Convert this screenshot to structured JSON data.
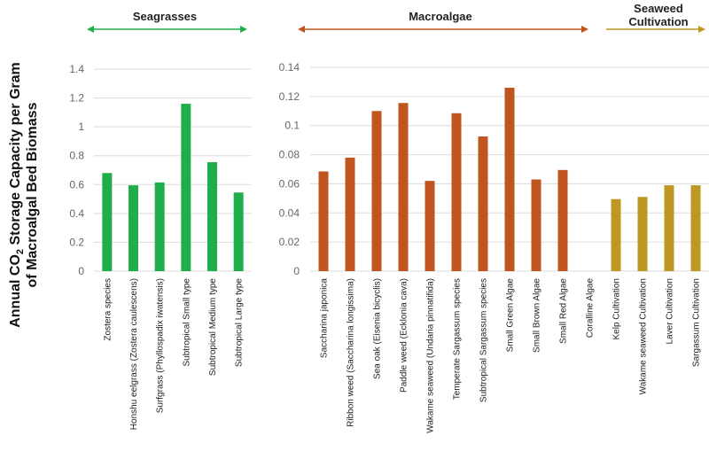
{
  "colors": {
    "seagrass": "#1fae4b",
    "macroalgae": "#c0551f",
    "cultivation": "#bd9822",
    "grid": "#dcdcdc"
  },
  "ylabel": {
    "line1_pre": "Annual CO",
    "line1_sub": "2",
    "line1_post": " Storage Capacity per Gram",
    "line2": "of Macroalgal Bed Biomass"
  },
  "groups": {
    "seagrasses": "Seagrasses",
    "macroalgae": "Macroalgae",
    "cultivation_line1": "Seaweed",
    "cultivation_line2": "Cultivation"
  },
  "chart_data": [
    {
      "type": "bar",
      "group": "Seagrasses",
      "ylim": [
        0,
        1.4
      ],
      "yticks": [
        "0",
        "0.2",
        "0.4",
        "0.6",
        "0.8",
        "1",
        "1.2",
        "1.4"
      ],
      "categories": [
        "Zostera species",
        "Honshu eelgrass (Zostera caulescens)",
        "Surfgrass (Phyllospadix iwatensis)",
        "Subtropical Small type",
        "Subtropical Medium type",
        "Subtropical Large type"
      ],
      "values": [
        0.68,
        0.595,
        0.615,
        1.16,
        0.755,
        0.545
      ]
    },
    {
      "type": "bar",
      "group": "Macroalgae / Seaweed Cultivation",
      "ylim": [
        0,
        0.14
      ],
      "yticks": [
        "0",
        "0.02",
        "0.04",
        "0.06",
        "0.08",
        "0.1",
        "0.12",
        "0.14"
      ],
      "categories": [
        "Saccharina japonica",
        "Ribbon weed (Saccharina longissima)",
        "Sea oak (Eisenia bicyclis)",
        "Paddle weed (Ecklonia cava)",
        "Wakame seaweed (Undaria pinnatifida)",
        "Temperate Sargassum species",
        "Subtropical Sargassum species",
        "Small Green Algae",
        "Small Brown Algae",
        "Small Red Algae",
        "Coralline Algae",
        "Kelp Cultivation",
        "Wakame seaweed Cultivation",
        "Laver Cultivation",
        "Sargassum Cultivation"
      ],
      "values": [
        0.0685,
        0.078,
        0.11,
        0.1155,
        0.062,
        0.1085,
        0.0925,
        0.126,
        0.063,
        0.0695,
        0,
        0.0495,
        0.051,
        0.059,
        0.059
      ],
      "groups": [
        "Macroalgae",
        "Macroalgae",
        "Macroalgae",
        "Macroalgae",
        "Macroalgae",
        "Macroalgae",
        "Macroalgae",
        "Macroalgae",
        "Macroalgae",
        "Macroalgae",
        "Macroalgae",
        "Seaweed Cultivation",
        "Seaweed Cultivation",
        "Seaweed Cultivation",
        "Seaweed Cultivation"
      ]
    }
  ]
}
